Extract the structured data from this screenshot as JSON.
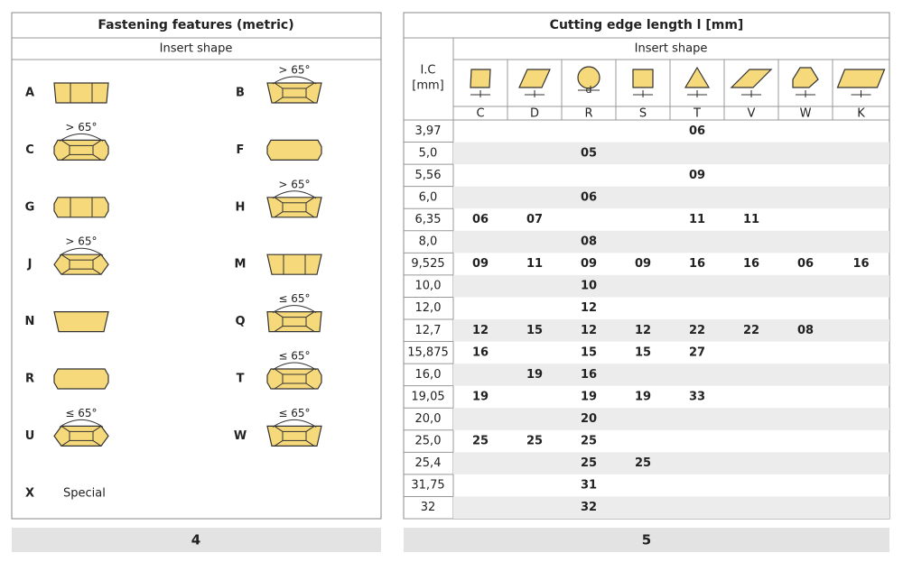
{
  "left": {
    "title": "Fastening features (metric)",
    "subtitle": "Insert shape",
    "items": [
      {
        "code": "A",
        "angle": null
      },
      {
        "code": "B",
        "angle": "> 65°"
      },
      {
        "code": "C",
        "angle": "> 65°"
      },
      {
        "code": "F",
        "angle": null
      },
      {
        "code": "G",
        "angle": null
      },
      {
        "code": "H",
        "angle": "> 65°"
      },
      {
        "code": "J",
        "angle": "> 65°"
      },
      {
        "code": "M",
        "angle": null
      },
      {
        "code": "N",
        "angle": null
      },
      {
        "code": "Q",
        "angle": "≤ 65°"
      },
      {
        "code": "R",
        "angle": null
      },
      {
        "code": "T",
        "angle": "≤ 65°"
      },
      {
        "code": "U",
        "angle": "≤ 65°"
      },
      {
        "code": "W",
        "angle": "≤ 65°"
      },
      {
        "code": "X",
        "angle": null,
        "text": "Special"
      }
    ],
    "footer": "4"
  },
  "right": {
    "title": "Cutting edge length l [mm]",
    "subtitle": "Insert shape",
    "ic_label": [
      "I.C",
      "[mm]"
    ],
    "columns": [
      {
        "code": "C",
        "dim": "l"
      },
      {
        "code": "D",
        "dim": "l"
      },
      {
        "code": "R",
        "dim": "d"
      },
      {
        "code": "S",
        "dim": "l"
      },
      {
        "code": "T",
        "dim": "l"
      },
      {
        "code": "V",
        "dim": "l"
      },
      {
        "code": "W",
        "dim": "l"
      },
      {
        "code": "K",
        "dim": "l"
      }
    ],
    "rows": [
      {
        "ic": "3,97",
        "cells": [
          null,
          null,
          null,
          null,
          "06",
          null,
          null,
          null
        ]
      },
      {
        "ic": "5,0",
        "cells": [
          null,
          null,
          "05",
          null,
          null,
          null,
          null,
          null
        ]
      },
      {
        "ic": "5,56",
        "cells": [
          null,
          null,
          null,
          null,
          "09",
          null,
          null,
          null
        ]
      },
      {
        "ic": "6,0",
        "cells": [
          null,
          null,
          "06",
          null,
          null,
          null,
          null,
          null
        ]
      },
      {
        "ic": "6,35",
        "cells": [
          "06",
          "07",
          null,
          null,
          "11",
          "11",
          null,
          null
        ]
      },
      {
        "ic": "8,0",
        "cells": [
          null,
          null,
          "08",
          null,
          null,
          null,
          null,
          null
        ]
      },
      {
        "ic": "9,525",
        "cells": [
          "09",
          "11",
          "09",
          "09",
          "16",
          "16",
          "06",
          "16"
        ]
      },
      {
        "ic": "10,0",
        "cells": [
          null,
          null,
          "10",
          null,
          null,
          null,
          null,
          null
        ]
      },
      {
        "ic": "12,0",
        "cells": [
          null,
          null,
          "12",
          null,
          null,
          null,
          null,
          null
        ]
      },
      {
        "ic": "12,7",
        "cells": [
          "12",
          "15",
          "12",
          "12",
          "22",
          "22",
          "08",
          null
        ]
      },
      {
        "ic": "15,875",
        "cells": [
          "16",
          null,
          "15",
          "15",
          "27",
          null,
          null,
          null
        ]
      },
      {
        "ic": "16,0",
        "cells": [
          null,
          "19",
          "16",
          null,
          null,
          null,
          null,
          null
        ]
      },
      {
        "ic": "19,05",
        "cells": [
          "19",
          null,
          "19",
          "19",
          "33",
          null,
          null,
          null
        ]
      },
      {
        "ic": "20,0",
        "cells": [
          null,
          null,
          "20",
          null,
          null,
          null,
          null,
          null
        ]
      },
      {
        "ic": "25,0",
        "cells": [
          "25",
          "25",
          "25",
          null,
          null,
          null,
          null,
          null
        ]
      },
      {
        "ic": "25,4",
        "cells": [
          null,
          null,
          "25",
          "25",
          null,
          null,
          null,
          null
        ]
      },
      {
        "ic": "31,75",
        "cells": [
          null,
          null,
          "31",
          null,
          null,
          null,
          null,
          null
        ]
      },
      {
        "ic": "32",
        "cells": [
          null,
          null,
          "32",
          null,
          null,
          null,
          null,
          null
        ]
      }
    ],
    "footer": "5"
  }
}
